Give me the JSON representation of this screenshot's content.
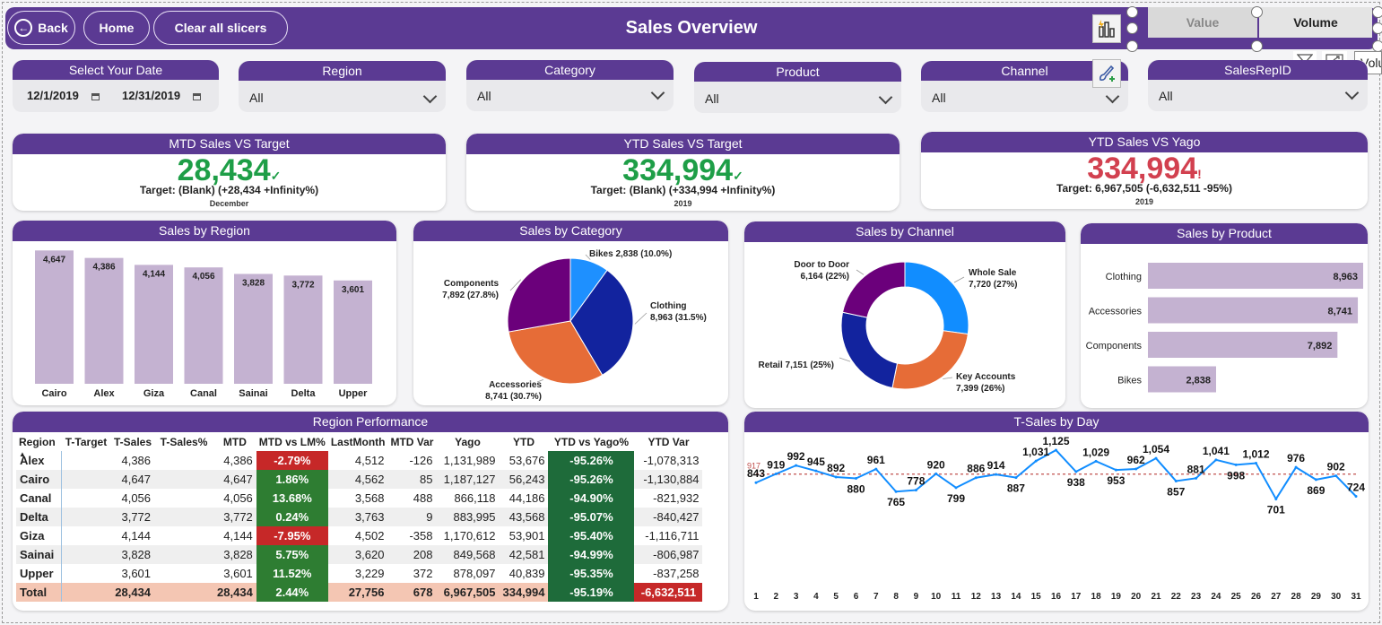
{
  "header": {
    "title": "Sales Overview",
    "back_label": "Back",
    "home_label": "Home",
    "clear_label": "Clear all slicers",
    "toggle_value": "Value",
    "toggle_volume": "Volume",
    "tooltip_partial": "Volu"
  },
  "slicers": {
    "date": {
      "title": "Select Your Date",
      "start": "12/1/2019",
      "end": "12/31/2019"
    },
    "region": {
      "title": "Region",
      "value": "All"
    },
    "category": {
      "title": "Category",
      "value": "All"
    },
    "product": {
      "title": "Product",
      "value": "All"
    },
    "channel": {
      "title": "Channel",
      "value": "All"
    },
    "salesrep": {
      "title": "SalesRepID",
      "value": "All"
    }
  },
  "kpis": {
    "mtd": {
      "title": "MTD Sales VS Target",
      "value": "28,434",
      "mark": "✓",
      "sub": "Target: (Blank) (+28,434 +Infinity%)",
      "period": "December",
      "color": "#1e9e47"
    },
    "ytd": {
      "title": "YTD Sales VS Target",
      "value": "334,994",
      "mark": "✓",
      "sub": "Target: (Blank) (+334,994 +Infinity%)",
      "period": "2019",
      "color": "#1e9e47"
    },
    "yago": {
      "title": "YTD Sales VS Yago",
      "value": "334,994",
      "mark": "!",
      "sub": "Target: 6,967,505 (-6,632,511 -95%)",
      "period": "2019",
      "color": "#d2404f"
    }
  },
  "chart_data": [
    {
      "type": "bar",
      "title": "Sales by Region",
      "categories": [
        "Cairo",
        "Alex",
        "Giza",
        "Canal",
        "Sainai",
        "Delta",
        "Upper"
      ],
      "values": [
        4647,
        4386,
        4144,
        4056,
        3828,
        3772,
        3601
      ],
      "labels": [
        "4,647",
        "4,386",
        "4,144",
        "4,056",
        "3,828",
        "3,772",
        "3,601"
      ],
      "ylim": [
        0,
        5000
      ],
      "color": "#c4b2d1"
    },
    {
      "type": "pie",
      "title": "Sales by Category",
      "slices": [
        {
          "name": "Bikes",
          "label": "Bikes 2,838 (10.0%)",
          "value": 2838,
          "color": "#1e90ff"
        },
        {
          "name": "Clothing",
          "label": "Clothing",
          "label2": "8,963 (31.5%)",
          "value": 8963,
          "color": "#12239e"
        },
        {
          "name": "Accessories",
          "label": "Accessories",
          "label2": "8,741 (30.7%)",
          "value": 8741,
          "color": "#e66c37"
        },
        {
          "name": "Components",
          "label": "Components",
          "label2": "7,892 (27.8%)",
          "value": 7892,
          "color": "#6b007b"
        }
      ]
    },
    {
      "type": "pie",
      "title": "Sales by Channel",
      "donut": true,
      "slices": [
        {
          "name": "Whole Sale",
          "label": "Whole Sale",
          "label2": "7,720 (27%)",
          "value": 7720,
          "color": "#118dff"
        },
        {
          "name": "Key Accounts",
          "label": "Key Accounts",
          "label2": "7,399 (26%)",
          "value": 7399,
          "color": "#e66c37"
        },
        {
          "name": "Retail",
          "label": "Retail 7,151 (25%)",
          "value": 7151,
          "color": "#12239e"
        },
        {
          "name": "Door to Door",
          "label": "Door to Door",
          "label2": "6,164 (22%)",
          "value": 6164,
          "color": "#6b007b"
        }
      ]
    },
    {
      "type": "bar",
      "orientation": "horizontal",
      "title": "Sales by Product",
      "categories": [
        "Clothing",
        "Accessories",
        "Components",
        "Bikes"
      ],
      "values": [
        8963,
        8741,
        7892,
        2838
      ],
      "labels": [
        "8,963",
        "8,741",
        "7,892",
        "2,838"
      ],
      "xlim": [
        0,
        8963
      ],
      "color": "#c4b2d1"
    },
    {
      "type": "line",
      "title": "T-Sales by Day",
      "x": [
        1,
        2,
        3,
        4,
        5,
        6,
        7,
        8,
        9,
        10,
        11,
        12,
        13,
        14,
        15,
        16,
        17,
        18,
        19,
        20,
        21,
        22,
        23,
        24,
        25,
        26,
        27,
        28,
        29,
        30,
        31
      ],
      "values": [
        843,
        919,
        992,
        945,
        892,
        880,
        961,
        765,
        778,
        920,
        799,
        886,
        914,
        887,
        1031,
        1125,
        938,
        1029,
        953,
        962,
        1054,
        857,
        881,
        1041,
        998,
        1012,
        701,
        976,
        869,
        902,
        724
      ],
      "labels": [
        "843",
        "919",
        "992",
        "945",
        "892",
        "880",
        "961",
        "765",
        "778",
        "920",
        "799",
        "886",
        "914",
        "887",
        "1,031",
        "1,125",
        "938",
        "1,029",
        "953",
        "962",
        "1,054",
        "857",
        "881",
        "1,041",
        "998",
        "1,012",
        "701",
        "976",
        "869",
        "902",
        "724"
      ],
      "average": 917,
      "average_label": "917",
      "ylim": [
        650,
        1180
      ],
      "color": "#118dff",
      "average_color": "#c0504d"
    }
  ],
  "performance": {
    "title": "Region Performance",
    "columns": [
      "Region",
      "T-Target",
      "T-Sales",
      "T-Sales%",
      "MTD",
      "MTD vs LM%",
      "LastMonth",
      "MTD Var",
      "Yago",
      "YTD",
      "YTD vs Yago%",
      "YTD Var"
    ],
    "rows": [
      {
        "region": "Alex",
        "ttarget": "",
        "tsales": "4,386",
        "tsalespct": "",
        "mtd": "4,386",
        "mtdlm": "-2.79%",
        "mtdlm_state": "neg",
        "lastmonth": "4,512",
        "mtdvar": "-126",
        "yago": "1,131,989",
        "ytd": "53,676",
        "ytdyago": "-95.26%",
        "ytdvar": "-1,078,313"
      },
      {
        "region": "Cairo",
        "ttarget": "",
        "tsales": "4,647",
        "tsalespct": "",
        "mtd": "4,647",
        "mtdlm": "1.86%",
        "mtdlm_state": "pos",
        "lastmonth": "4,562",
        "mtdvar": "85",
        "yago": "1,187,127",
        "ytd": "56,243",
        "ytdyago": "-95.26%",
        "ytdvar": "-1,130,884"
      },
      {
        "region": "Canal",
        "ttarget": "",
        "tsales": "4,056",
        "tsalespct": "",
        "mtd": "4,056",
        "mtdlm": "13.68%",
        "mtdlm_state": "pos",
        "lastmonth": "3,568",
        "mtdvar": "488",
        "yago": "866,118",
        "ytd": "44,186",
        "ytdyago": "-94.90%",
        "ytdvar": "-821,932"
      },
      {
        "region": "Delta",
        "ttarget": "",
        "tsales": "3,772",
        "tsalespct": "",
        "mtd": "3,772",
        "mtdlm": "0.24%",
        "mtdlm_state": "pos",
        "lastmonth": "3,763",
        "mtdvar": "9",
        "yago": "883,995",
        "ytd": "43,568",
        "ytdyago": "-95.07%",
        "ytdvar": "-840,427"
      },
      {
        "region": "Giza",
        "ttarget": "",
        "tsales": "4,144",
        "tsalespct": "",
        "mtd": "4,144",
        "mtdlm": "-7.95%",
        "mtdlm_state": "neg",
        "lastmonth": "4,502",
        "mtdvar": "-358",
        "yago": "1,170,612",
        "ytd": "53,901",
        "ytdyago": "-95.40%",
        "ytdvar": "-1,116,711"
      },
      {
        "region": "Sainai",
        "ttarget": "",
        "tsales": "3,828",
        "tsalespct": "",
        "mtd": "3,828",
        "mtdlm": "5.75%",
        "mtdlm_state": "pos",
        "lastmonth": "3,620",
        "mtdvar": "208",
        "yago": "849,568",
        "ytd": "42,581",
        "ytdyago": "-94.99%",
        "ytdvar": "-806,987"
      },
      {
        "region": "Upper",
        "ttarget": "",
        "tsales": "3,601",
        "tsalespct": "",
        "mtd": "3,601",
        "mtdlm": "11.52%",
        "mtdlm_state": "pos",
        "lastmonth": "3,229",
        "mtdvar": "372",
        "yago": "878,097",
        "ytd": "40,839",
        "ytdyago": "-95.35%",
        "ytdvar": "-837,258"
      }
    ],
    "total": {
      "region": "Total",
      "ttarget": "",
      "tsales": "28,434",
      "tsalespct": "",
      "mtd": "28,434",
      "mtdlm": "2.44%",
      "lastmonth": "27,756",
      "mtdvar": "678",
      "yago": "6,967,505",
      "ytd": "334,994",
      "ytdyago": "-95.19%",
      "ytdvar": "-6,632,511"
    }
  },
  "icons": {
    "chart_switch": "bar-chart-lightning-icon",
    "format_painter": "paint-brush-icon",
    "filter": "filter-icon",
    "focus": "focus-mode-icon",
    "back": "back-arrow-icon",
    "sort": "sort-ascending-icon",
    "calendar": "calendar-icon",
    "chevron": "chevron-down-icon"
  }
}
